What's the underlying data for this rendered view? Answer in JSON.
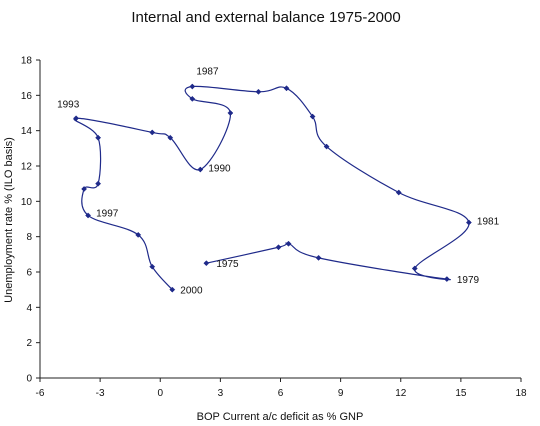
{
  "chart_data": {
    "type": "line",
    "title": "Internal and external balance 1975-2000",
    "xlabel": "BOP Current a/c deficit as % GNP",
    "ylabel": "Unemployment rate % (ILO basis)",
    "xlim": [
      -6,
      18
    ],
    "ylim": [
      0,
      18
    ],
    "x_ticks": [
      -6,
      -3,
      0,
      3,
      6,
      9,
      12,
      15,
      18
    ],
    "y_ticks": [
      0,
      2,
      4,
      6,
      8,
      10,
      12,
      14,
      16,
      18
    ],
    "grid": false,
    "legend": "none",
    "line_color": "#1f2a8a",
    "marker_color": "#1f2a8a",
    "series": [
      {
        "points": [
          {
            "x": 2.3,
            "y": 6.5,
            "label": "1975"
          },
          {
            "x": 5.9,
            "y": 7.4,
            "label": ""
          },
          {
            "x": 6.4,
            "y": 7.6,
            "label": ""
          },
          {
            "x": 7.9,
            "y": 6.8,
            "label": ""
          },
          {
            "x": 14.3,
            "y": 5.6,
            "label": "1979"
          },
          {
            "x": 12.7,
            "y": 6.2,
            "label": ""
          },
          {
            "x": 15.4,
            "y": 8.8,
            "label": "1981"
          },
          {
            "x": 11.9,
            "y": 10.5,
            "label": ""
          },
          {
            "x": 8.3,
            "y": 13.1,
            "label": ""
          },
          {
            "x": 7.6,
            "y": 14.8,
            "label": ""
          },
          {
            "x": 6.3,
            "y": 16.4,
            "label": ""
          },
          {
            "x": 4.9,
            "y": 16.2,
            "label": ""
          },
          {
            "x": 1.6,
            "y": 16.5,
            "label": "1987"
          },
          {
            "x": 1.6,
            "y": 15.8,
            "label": ""
          },
          {
            "x": 3.5,
            "y": 15.0,
            "label": ""
          },
          {
            "x": 2.0,
            "y": 11.8,
            "label": "1990"
          },
          {
            "x": 0.5,
            "y": 13.6,
            "label": ""
          },
          {
            "x": -0.4,
            "y": 13.9,
            "label": ""
          },
          {
            "x": -4.2,
            "y": 14.7,
            "label": "1993"
          },
          {
            "x": -3.1,
            "y": 13.6,
            "label": ""
          },
          {
            "x": -3.1,
            "y": 11.0,
            "label": ""
          },
          {
            "x": -3.8,
            "y": 10.7,
            "label": ""
          },
          {
            "x": -3.6,
            "y": 9.2,
            "label": "1997"
          },
          {
            "x": -1.1,
            "y": 8.1,
            "label": ""
          },
          {
            "x": -0.4,
            "y": 6.3,
            "label": ""
          },
          {
            "x": 0.6,
            "y": 5.0,
            "label": "2000"
          }
        ]
      }
    ]
  }
}
